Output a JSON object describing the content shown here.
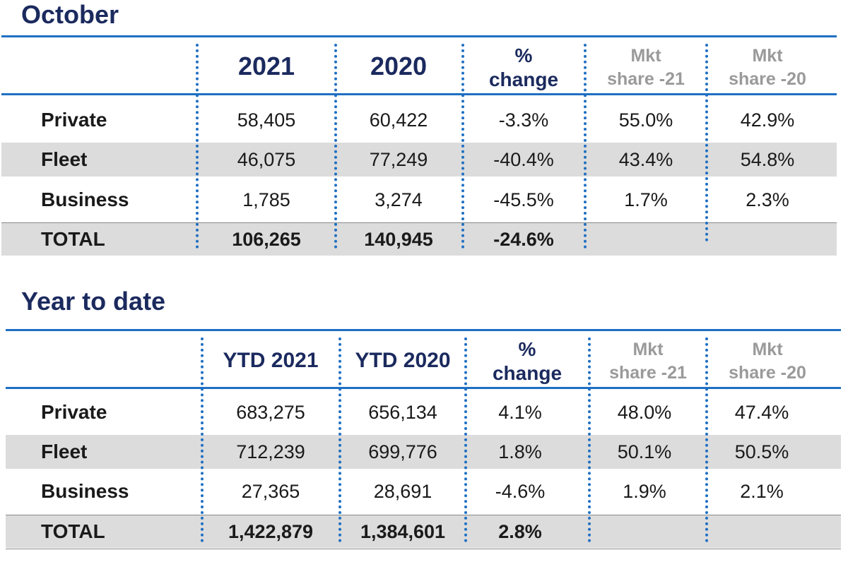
{
  "sections": [
    {
      "title": "October",
      "headers": {
        "col1": "2021",
        "col2": "2020",
        "pct_line1": "%",
        "pct_line2": "change",
        "mkt21_line1": "Mkt",
        "mkt21_line2": "share -21",
        "mkt20_line1": "Mkt",
        "mkt20_line2": "share -20"
      },
      "rows": [
        {
          "label": "Private",
          "v1": "58,405",
          "v2": "60,422",
          "pct": "-3.3%",
          "mkt21": "55.0%",
          "mkt20": "42.9%"
        },
        {
          "label": "Fleet",
          "v1": "46,075",
          "v2": "77,249",
          "pct": "-40.4%",
          "mkt21": "43.4%",
          "mkt20": "54.8%"
        },
        {
          "label": "Business",
          "v1": "1,785",
          "v2": "3,274",
          "pct": "-45.5%",
          "mkt21": "1.7%",
          "mkt20": "2.3%"
        },
        {
          "label": "TOTAL",
          "v1": "106,265",
          "v2": "140,945",
          "pct": "-24.6%",
          "mkt21": "",
          "mkt20": ""
        }
      ]
    },
    {
      "title": "Year to date",
      "headers": {
        "col1": "YTD 2021",
        "col2": "YTD 2020",
        "pct_line1": "%",
        "pct_line2": "change",
        "mkt21_line1": "Mkt",
        "mkt21_line2": "share -21",
        "mkt20_line1": "Mkt",
        "mkt20_line2": "share -20"
      },
      "rows": [
        {
          "label": "Private",
          "v1": "683,275",
          "v2": "656,134",
          "pct": "4.1%",
          "mkt21": "48.0%",
          "mkt20": "47.4%"
        },
        {
          "label": "Fleet",
          "v1": "712,239",
          "v2": "699,776",
          "pct": "1.8%",
          "mkt21": "50.1%",
          "mkt20": "50.5%"
        },
        {
          "label": "Business",
          "v1": "27,365",
          "v2": "28,691",
          "pct": "-4.6%",
          "mkt21": "1.9%",
          "mkt20": "2.1%"
        },
        {
          "label": "TOTAL",
          "v1": "1,422,879",
          "v2": "1,384,601",
          "pct": "2.8%",
          "mkt21": "",
          "mkt20": ""
        }
      ]
    }
  ]
}
